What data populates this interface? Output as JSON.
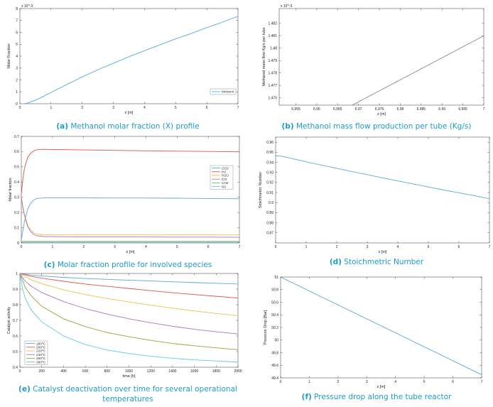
{
  "captions": {
    "a": {
      "tag": "(a)",
      "text": "Methanol molar fraction (X) profile"
    },
    "b": {
      "tag": "(b)",
      "text": "Methanol mass flow production per tube (Kg/s)"
    },
    "c": {
      "tag": "(c)",
      "text": "Molar fraction profile for involved species"
    },
    "d": {
      "tag": "(d)",
      "text": "Stoichmetric Number"
    },
    "e": {
      "tag": "(e)",
      "text": "Catalyst deactivation over time for several operational temperatures"
    },
    "f": {
      "tag": "(f)",
      "text": "Pressure drop along the tube reactor"
    }
  },
  "colors": {
    "caption": "#1b9ccb",
    "axis": "#333333"
  },
  "chart_data": [
    {
      "id": "a",
      "type": "line",
      "title": "Methanol molar fraction (X) profile",
      "xlabel": "z [m]",
      "ylabel": "Molar Fraction",
      "y_multiplier": "x 10^-3",
      "xlim": [
        0,
        7
      ],
      "ylim": [
        0,
        8
      ],
      "xticks": [
        0,
        1,
        2,
        3,
        4,
        5,
        6,
        7
      ],
      "yticks": [
        0,
        1,
        2,
        3,
        4,
        5,
        6,
        7,
        8
      ],
      "legend": {
        "position": "bottom-right"
      },
      "series": [
        {
          "name": "Metanol",
          "color": "#5aa9d6",
          "x": [
            0,
            0.15,
            0.3,
            0.5,
            0.75,
            1,
            1.5,
            2,
            2.5,
            3,
            3.5,
            4,
            4.5,
            5,
            5.5,
            6,
            6.5,
            7
          ],
          "y": [
            0,
            0.0,
            0.1,
            0.3,
            0.6,
            0.95,
            1.6,
            2.25,
            2.85,
            3.4,
            3.95,
            4.45,
            4.95,
            5.45,
            5.9,
            6.4,
            6.85,
            7.35
          ]
        }
      ]
    },
    {
      "id": "b",
      "type": "line",
      "title": "Methanol mass flow production per tube (Kg/s)",
      "xlabel": "z [m]",
      "ylabel": "Methanol mass flow Kg/s per tube",
      "y_multiplier": "x 10^-3",
      "xlim": [
        6.951,
        7
      ],
      "ylim": [
        1.4754,
        1.4832
      ],
      "xticks": [
        6.955,
        6.96,
        6.965,
        6.97,
        6.975,
        6.98,
        6.985,
        6.99,
        6.995,
        7
      ],
      "xticklabels": [
        "6.955",
        "6.96",
        "6.965",
        "6.97",
        "6.975",
        "6.98",
        "6.985",
        "6.99",
        "6.995",
        "7"
      ],
      "yticks": [
        1.476,
        1.477,
        1.478,
        1.479,
        1.48,
        1.481,
        1.482
      ],
      "yticklabels": [
        "1.476",
        "1.477",
        "1.478",
        "1.479",
        "1.48",
        "1.481",
        "1.482"
      ],
      "series": [
        {
          "name": "Methanol mass flow",
          "color": "#8a8a8a",
          "x": [
            6.9685,
            7
          ],
          "y": [
            1.4754,
            1.481
          ]
        }
      ]
    },
    {
      "id": "c",
      "type": "line",
      "title": "Molar fraction profile for involved species",
      "xlabel": "z [m]",
      "ylabel": "Molar fraction",
      "xlim": [
        0,
        7
      ],
      "ylim": [
        0,
        0.7
      ],
      "xticks": [
        0,
        1,
        2,
        3,
        4,
        5,
        6,
        7
      ],
      "yticks": [
        0,
        0.1,
        0.2,
        0.3,
        0.4,
        0.5,
        0.6,
        0.7
      ],
      "legend": {
        "position": "right"
      },
      "series": [
        {
          "name": "CO2",
          "color": "#5aa9d6",
          "x": [
            0,
            0.05,
            0.1,
            0.2,
            0.3,
            0.4,
            0.5,
            0.7,
            1,
            2,
            3,
            4,
            5,
            6,
            7
          ],
          "y": [
            0.02,
            0.08,
            0.14,
            0.22,
            0.26,
            0.283,
            0.292,
            0.296,
            0.296,
            0.296,
            0.295,
            0.295,
            0.294,
            0.292,
            0.29
          ]
        },
        {
          "name": "H2",
          "color": "#e0524a",
          "x": [
            0,
            0.05,
            0.1,
            0.2,
            0.3,
            0.4,
            0.5,
            0.7,
            1,
            2,
            3,
            4,
            5,
            6,
            7
          ],
          "y": [
            0.32,
            0.42,
            0.49,
            0.56,
            0.59,
            0.605,
            0.612,
            0.615,
            0.614,
            0.611,
            0.608,
            0.605,
            0.603,
            0.601,
            0.599
          ]
        },
        {
          "name": "H2O",
          "color": "#f0c040",
          "x": [
            0,
            0.05,
            0.1,
            0.2,
            0.3,
            0.4,
            0.5,
            0.7,
            1,
            2,
            3,
            4,
            5,
            6,
            7
          ],
          "y": [
            0.3,
            0.24,
            0.19,
            0.12,
            0.085,
            0.066,
            0.058,
            0.054,
            0.053,
            0.053,
            0.053,
            0.053,
            0.053,
            0.053,
            0.053
          ]
        },
        {
          "name": "CO",
          "color": "#a874c9",
          "x": [
            0,
            0.05,
            0.1,
            0.2,
            0.3,
            0.4,
            0.5,
            0.7,
            1,
            2,
            3,
            4,
            5,
            6,
            7
          ],
          "y": [
            0.3,
            0.23,
            0.18,
            0.11,
            0.075,
            0.056,
            0.047,
            0.042,
            0.041,
            0.04,
            0.04,
            0.039,
            0.038,
            0.038,
            0.037
          ]
        },
        {
          "name": "CH4",
          "color": "#7cbf4b",
          "x": [
            0,
            7
          ],
          "y": [
            0.01,
            0.01
          ]
        },
        {
          "name": "N2",
          "color": "#62c6e8",
          "x": [
            0,
            7
          ],
          "y": [
            0.005,
            0.005
          ]
        }
      ]
    },
    {
      "id": "d",
      "type": "line",
      "title": "Stoichmetric Number",
      "xlabel": "z [m]",
      "ylabel": "Stoichmetric Number",
      "xlim": [
        0,
        7
      ],
      "ylim": [
        0.86,
        0.965
      ],
      "xticks": [
        0,
        1,
        2,
        3,
        4,
        5,
        6,
        7
      ],
      "yticks": [
        0.87,
        0.88,
        0.89,
        0.9,
        0.91,
        0.92,
        0.93,
        0.94,
        0.95,
        0.96
      ],
      "yticklabels": [
        "0.87",
        "0.88",
        "0.89",
        "0.9",
        "0.91",
        "0.92",
        "0.93",
        "0.94",
        "0.95",
        "0.96"
      ],
      "series": [
        {
          "name": "Stoichiometric Number",
          "color": "#5aa9d6",
          "x": [
            0,
            0.2,
            0.5,
            1,
            1.5,
            2,
            2.5,
            3,
            3.5,
            4,
            4.5,
            5,
            5.5,
            6,
            6.5,
            7
          ],
          "y": [
            0.9465,
            0.946,
            0.944,
            0.9405,
            0.9372,
            0.934,
            0.9308,
            0.9277,
            0.9246,
            0.9215,
            0.9185,
            0.9155,
            0.9125,
            0.9097,
            0.907,
            0.9037
          ]
        }
      ]
    },
    {
      "id": "e",
      "type": "line",
      "title": "Catalyst deactivation over time for several operational temperatures",
      "xlabel": "time [h]",
      "ylabel": "Catalyst activity",
      "xlim": [
        0,
        2000
      ],
      "ylim": [
        0.4,
        1
      ],
      "xticks": [
        0,
        200,
        400,
        600,
        800,
        1000,
        1200,
        1400,
        1600,
        1800,
        2000
      ],
      "yticks": [
        0.4,
        0.5,
        0.6,
        0.7,
        0.8,
        0.9,
        1
      ],
      "legend": {
        "position": "bottom-left"
      },
      "series": [
        {
          "name": "180ºC",
          "color": "#5aa9d6",
          "x": [
            0,
            100,
            200,
            400,
            600,
            800,
            1000,
            1200,
            1400,
            1600,
            1800,
            2000
          ],
          "y": [
            1,
            0.99,
            0.984,
            0.975,
            0.968,
            0.962,
            0.957,
            0.952,
            0.947,
            0.942,
            0.937,
            0.932
          ]
        },
        {
          "name": "200ºC",
          "color": "#e0524a",
          "x": [
            0,
            100,
            200,
            400,
            600,
            800,
            1000,
            1200,
            1400,
            1600,
            1800,
            2000
          ],
          "y": [
            1,
            0.982,
            0.97,
            0.95,
            0.932,
            0.918,
            0.904,
            0.89,
            0.877,
            0.865,
            0.854,
            0.843
          ]
        },
        {
          "name": "220ºC",
          "color": "#f0c040",
          "x": [
            0,
            100,
            200,
            400,
            600,
            800,
            1000,
            1200,
            1400,
            1600,
            1800,
            2000
          ],
          "y": [
            1,
            0.96,
            0.935,
            0.895,
            0.865,
            0.84,
            0.818,
            0.797,
            0.778,
            0.76,
            0.744,
            0.73
          ]
        },
        {
          "name": "240ºC",
          "color": "#a874c9",
          "x": [
            0,
            50,
            100,
            200,
            400,
            600,
            800,
            1000,
            1200,
            1400,
            1600,
            1800,
            2000
          ],
          "y": [
            1,
            0.95,
            0.92,
            0.878,
            0.82,
            0.775,
            0.74,
            0.71,
            0.685,
            0.662,
            0.643,
            0.627,
            0.613
          ]
        },
        {
          "name": "260ºC",
          "color": "#8aa83c",
          "x": [
            0,
            50,
            100,
            200,
            400,
            600,
            800,
            1000,
            1200,
            1400,
            1600,
            1800,
            2000
          ],
          "y": [
            1,
            0.91,
            0.86,
            0.79,
            0.71,
            0.66,
            0.622,
            0.595,
            0.572,
            0.552,
            0.537,
            0.524,
            0.512
          ]
        },
        {
          "name": "280ºC",
          "color": "#62c6e8",
          "x": [
            0,
            25,
            50,
            100,
            200,
            400,
            600,
            800,
            1000,
            1200,
            1400,
            1600,
            1800,
            2000
          ],
          "y": [
            1,
            0.9,
            0.84,
            0.77,
            0.69,
            0.6,
            0.545,
            0.51,
            0.488,
            0.47,
            0.457,
            0.447,
            0.44,
            0.433
          ]
        }
      ]
    },
    {
      "id": "f",
      "type": "line",
      "title": "Pressure drop along the tube reactor",
      "xlabel": "z [m]",
      "ylabel": "Pressure Drop [Bar]",
      "xlim": [
        0,
        7
      ],
      "ylim": [
        49.4,
        51
      ],
      "xticks": [
        0,
        1,
        2,
        3,
        4,
        5,
        6,
        7
      ],
      "yticks": [
        49.4,
        49.6,
        49.8,
        50,
        50.2,
        50.4,
        50.6,
        50.8,
        51
      ],
      "yticklabels": [
        "49.4",
        "49.6",
        "49.8",
        "50",
        "50.2",
        "50.4",
        "50.6",
        "50.8",
        "51"
      ],
      "series": [
        {
          "name": "Pressure",
          "color": "#5aa9d6",
          "x": [
            0,
            7
          ],
          "y": [
            51,
            49.45
          ]
        }
      ]
    }
  ]
}
